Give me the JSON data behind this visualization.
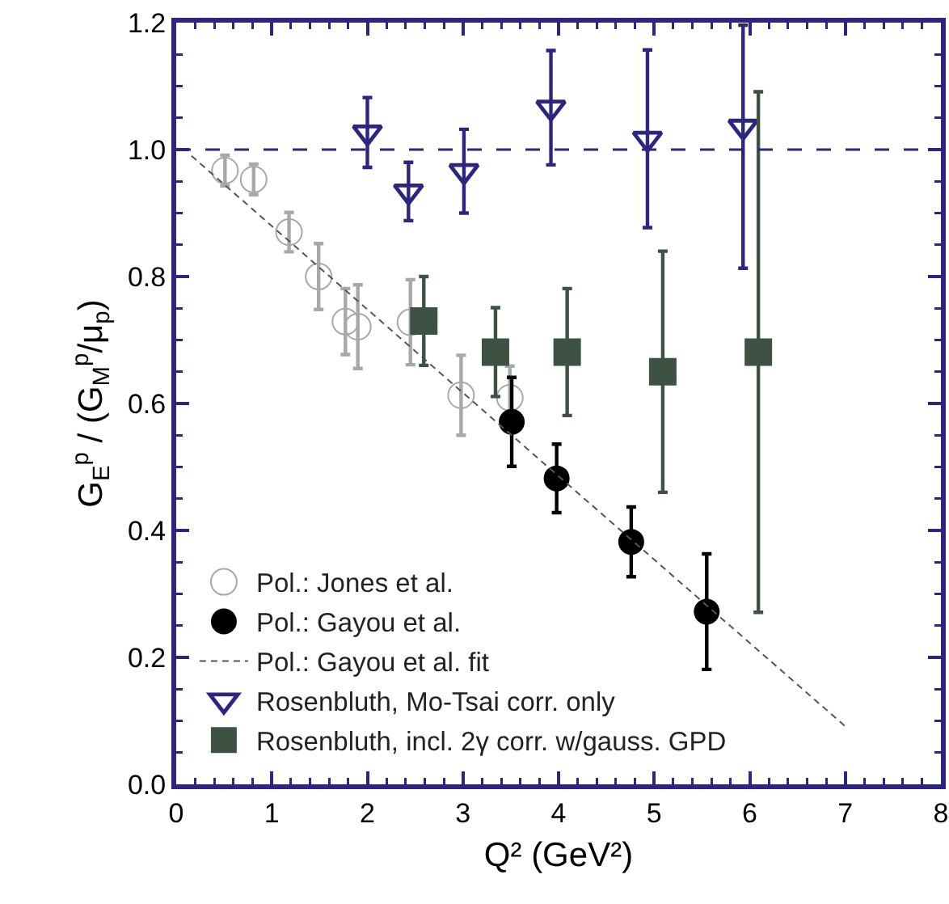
{
  "chart_data": {
    "type": "scatter",
    "xlabel": "Q² (GeV²)",
    "ylabel": "G$_{E}$$^{p}$ / (G$_{M}$$^{p}$/μ$_{p}$)",
    "xlim": [
      0,
      8
    ],
    "xticks": [
      0,
      1,
      2,
      3,
      4,
      5,
      6,
      7,
      8
    ],
    "ylim": [
      0,
      1.2
    ],
    "yticks": [
      {
        "value": 0,
        "label": "0.0"
      },
      {
        "value": 0.2,
        "label": "0.2"
      },
      {
        "value": 0.4,
        "label": "0.4"
      },
      {
        "value": 0.6,
        "label": "0.6"
      },
      {
        "value": 0.8,
        "label": "0.8"
      },
      {
        "value": 1,
        "label": "1.0"
      },
      {
        "value": 1.2,
        "label": "1.2"
      }
    ],
    "grid": false,
    "legend": "bottom left",
    "ref_lines": [
      {
        "axis": "y",
        "value": 1,
        "color": "#2e2580",
        "line_style": "dashed"
      }
    ],
    "series": [
      {
        "name": "Pol.: Jones et al.",
        "marker": "circle-open",
        "color": "#a8a8a8",
        "x": [
          0.51,
          0.81,
          1.18,
          1.49,
          1.77,
          1.9,
          2.45,
          2.98,
          3.49
        ],
        "values": [
          0.967,
          0.953,
          0.87,
          0.8,
          0.729,
          0.721,
          0.728,
          0.613,
          0.609
        ],
        "errors": [
          0.024,
          0.024,
          0.031,
          0.052,
          0.052,
          0.066,
          0.067,
          0.063,
          0.05
        ]
      },
      {
        "name": "Pol.: Gayou et al.",
        "marker": "circle",
        "color": "#000000",
        "x": [
          3.51,
          3.98,
          4.76,
          5.55
        ],
        "values": [
          0.571,
          0.482,
          0.382,
          0.272
        ],
        "errors": [
          0.07,
          0.054,
          0.055,
          0.091
        ]
      },
      {
        "name": "Pol.: Gayou et al. fit",
        "type": "line",
        "marker": "none",
        "line_style": "dashed",
        "color": "#555555",
        "x": [
          0.16,
          7.01
        ],
        "values": [
          0.99,
          0.09
        ]
      },
      {
        "name": "Rosenbluth, Mo-Tsai corr. only",
        "marker": "triangle-open",
        "color": "#2e2580",
        "x": [
          2.0,
          2.43,
          3.01,
          3.92,
          4.93,
          5.93
        ],
        "values": [
          1.027,
          0.934,
          0.966,
          1.066,
          1.017,
          1.036
        ],
        "errors": [
          0.055,
          0.046,
          0.066,
          0.09,
          0.14,
          [
            0.813,
            1.196
          ]
        ]
      },
      {
        "name": "Rosenbluth, incl. 2γ corr. w/gauss. GPD",
        "marker": "square",
        "color": "#3d5242",
        "x": [
          2.59,
          3.34,
          4.09,
          5.09,
          6.09
        ],
        "values": [
          0.73,
          0.681,
          0.681,
          0.65,
          0.681
        ],
        "errors": [
          0.07,
          0.07,
          0.1,
          0.19,
          0.41
        ]
      }
    ]
  }
}
